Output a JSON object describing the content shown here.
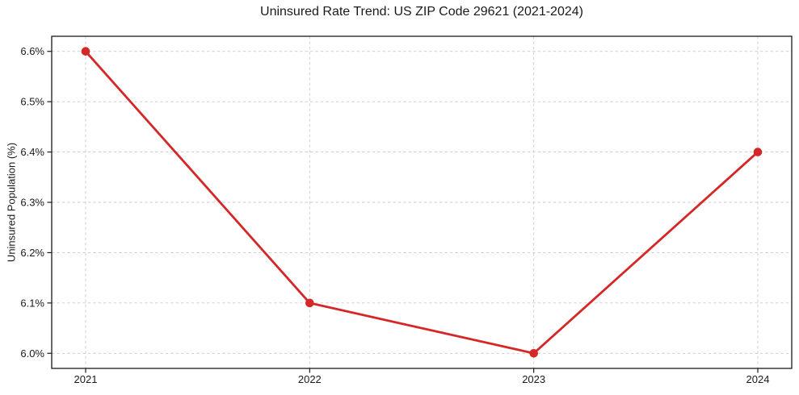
{
  "chart_data": {
    "type": "line",
    "title": "Uninsured Rate Trend: US ZIP Code 29621 (2021-2024)",
    "xlabel": "",
    "ylabel": "Uninsured Population (%)",
    "categories": [
      "2021",
      "2022",
      "2023",
      "2024"
    ],
    "values": [
      6.6,
      6.1,
      6.0,
      6.4
    ],
    "y_ticks": [
      6.0,
      6.1,
      6.2,
      6.3,
      6.4,
      6.5,
      6.6
    ],
    "y_tick_labels": [
      "6.0%",
      "6.1%",
      "6.2%",
      "6.3%",
      "6.4%",
      "6.5%",
      "6.6%"
    ],
    "ylim": [
      5.97,
      6.63
    ],
    "grid": true,
    "grid_style": "dashed",
    "legend_position": "none",
    "marker": "circle",
    "colors": {
      "line": "#d62728",
      "marker": "#d62728",
      "grid": "#cccccc",
      "axis": "#1a1a1a",
      "text": "#1a1a1a",
      "background": "#ffffff"
    }
  }
}
